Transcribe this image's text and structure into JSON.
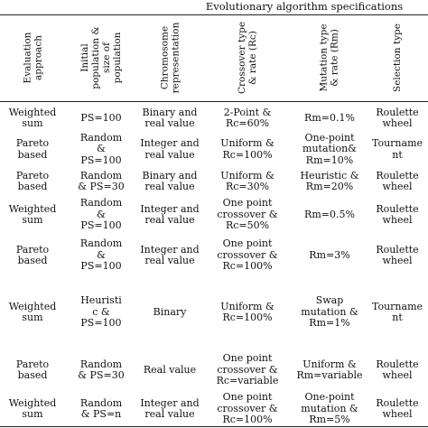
{
  "table": {
    "group_header": "Evolutionary algorithm specifications",
    "columns": [
      "Evaluation\napproach",
      "Initial\npopulation &\nsize of\npopulation",
      "Chromosome\nrepresentation",
      "Crossover type\n& rate (Rc)",
      "Mutation type\n& rate (Rm)",
      "Selection type"
    ],
    "rows": [
      [
        "Weighted\nsum",
        "PS=100",
        "Binary and\nreal value",
        "2-Point &\nRc=60%",
        "Rm=0.1%",
        "Roulette\nwheel"
      ],
      [
        "Pareto\nbased",
        "Random\n&\nPS=100",
        "Integer and\nreal value",
        "Uniform &\nRc=100%",
        "One-point\nmutation&\nRm=10%",
        "Tourname\nnt"
      ],
      [
        "Pareto\nbased",
        "Random\n& PS=30",
        "Binary and\nreal value",
        "Uniform &\nRc=30%",
        "Heuristic &\nRm=20%",
        "Roulette\nwheel"
      ],
      [
        "Weighted\nsum",
        "Random\n&\nPS=100",
        "Integer and\nreal value",
        "One point\ncrossover &\nRc=50%",
        "Rm=0.5%",
        "Roulette\nwheel"
      ],
      [
        "Pareto\nbased",
        "Random\n&\nPS=100",
        "Integer and\nreal value",
        "One point\ncrossover &\nRc=100%",
        "Rm=3%",
        "Roulette\nwheel"
      ],
      [
        "Weighted\nsum",
        "Heuristi\nc &\nPS=100",
        "Binary",
        "Uniform &\nRc=100%",
        "Swap\nmutation &\nRm=1%",
        "Tourname\nnt"
      ],
      [
        "Pareto\nbased",
        "Random\n& PS=30",
        "Real value",
        "One point\ncrossover &\nRc=variable",
        "Uniform &\nRm=variable",
        "Roulette\nwheel"
      ],
      [
        "Weighted\nsum",
        "Random\n& PS=n",
        "Integer and\nreal value",
        "One point\ncrossover &\nRc=100%",
        "One-point\nmutation &\nRm=5%",
        "Roulette\nwheel"
      ]
    ]
  }
}
